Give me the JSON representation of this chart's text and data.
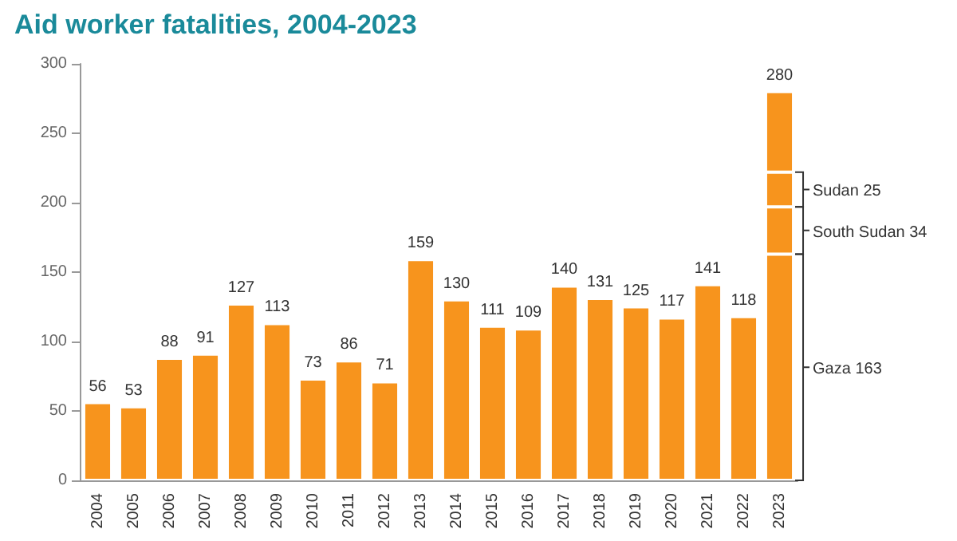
{
  "chart_data": {
    "type": "bar",
    "title": "Aid worker fatalities, 2004-2023",
    "stacked": true,
    "categories": [
      "2004",
      "2005",
      "2006",
      "2007",
      "2008",
      "2009",
      "2010",
      "2011",
      "2012",
      "2013",
      "2014",
      "2015",
      "2016",
      "2017",
      "2018",
      "2019",
      "2020",
      "2021",
      "2022",
      "2023"
    ],
    "series": [
      {
        "color": "#f7941d",
        "values": [
          56,
          53,
          88,
          91,
          127,
          113,
          73,
          86,
          71,
          159,
          130,
          111,
          109,
          140,
          131,
          125,
          117,
          141,
          118,
          163
        ],
        "value_labels": [
          "56",
          "53",
          "88",
          "91",
          "127",
          "113",
          "73",
          "86",
          "71",
          "159",
          "130",
          "111",
          "109",
          "140",
          "131",
          "125",
          "117",
          "141",
          "118",
          null
        ]
      },
      {
        "color": "#f7941d",
        "values": [
          null,
          null,
          null,
          null,
          null,
          null,
          null,
          null,
          null,
          null,
          null,
          null,
          null,
          null,
          null,
          null,
          null,
          null,
          null,
          34
        ]
      },
      {
        "color": "#f7941d",
        "values": [
          null,
          null,
          null,
          null,
          null,
          null,
          null,
          null,
          null,
          null,
          null,
          null,
          null,
          null,
          null,
          null,
          null,
          null,
          null,
          25
        ]
      },
      {
        "color": "#f7941d",
        "values": [
          null,
          null,
          null,
          null,
          null,
          null,
          null,
          null,
          null,
          null,
          null,
          null,
          null,
          null,
          null,
          null,
          null,
          null,
          null,
          58
        ]
      }
    ],
    "totals": [
      null,
      null,
      null,
      null,
      null,
      null,
      null,
      null,
      null,
      null,
      null,
      null,
      null,
      null,
      null,
      null,
      null,
      null,
      null,
      "280"
    ],
    "annotations": [
      "Gaza 163",
      "South Sudan 34",
      "Sudan 25"
    ],
    "ylim": [
      0,
      300
    ],
    "yticks": [
      0,
      50,
      100,
      150,
      200,
      250,
      300
    ],
    "grid": false
  }
}
